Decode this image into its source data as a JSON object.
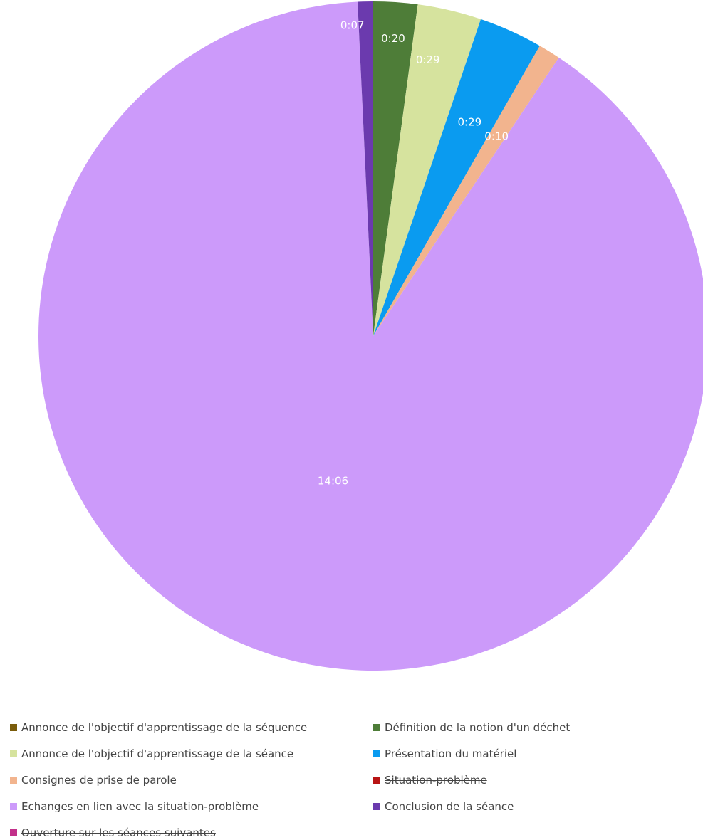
{
  "chart_data": {
    "type": "pie",
    "title": "",
    "units": "min:sec",
    "slices": [
      {
        "name": "Annonce de l'objectif d'apprentissage de la séquence",
        "value": 0,
        "color": "#7A5C0B",
        "label": "",
        "struck": true
      },
      {
        "name": "Définition de la notion d'un déchet",
        "value": 20,
        "color": "#4E7D38",
        "label": "0:20",
        "struck": false
      },
      {
        "name": "Annonce de l'objectif d'apprentissage de la séance",
        "value": 29,
        "color": "#D6E39E",
        "label": "0:29",
        "struck": false
      },
      {
        "name": "Présentation du matériel",
        "value": 29,
        "color": "#0A9BF0",
        "label": "0:29",
        "struck": false
      },
      {
        "name": "Consignes de prise de parole",
        "value": 10,
        "color": "#F2B48E",
        "label": "0:10",
        "struck": false
      },
      {
        "name": "Situation-problème",
        "value": 0,
        "color": "#B81414",
        "label": "",
        "struck": true
      },
      {
        "name": "Echanges en lien avec la situation-problème",
        "value": 846,
        "color": "#CC9AFA",
        "label": "14:06",
        "struck": false
      },
      {
        "name": "Conclusion de la séance",
        "value": 7,
        "color": "#6B3AAE",
        "label": "0:07",
        "struck": false
      },
      {
        "name": "Ouverture sur les séances suivantes",
        "value": 0,
        "color": "#C2308A",
        "label": "",
        "struck": true
      }
    ],
    "start_angle_deg": 0,
    "direction": "clockwise",
    "legend_position": "bottom"
  }
}
